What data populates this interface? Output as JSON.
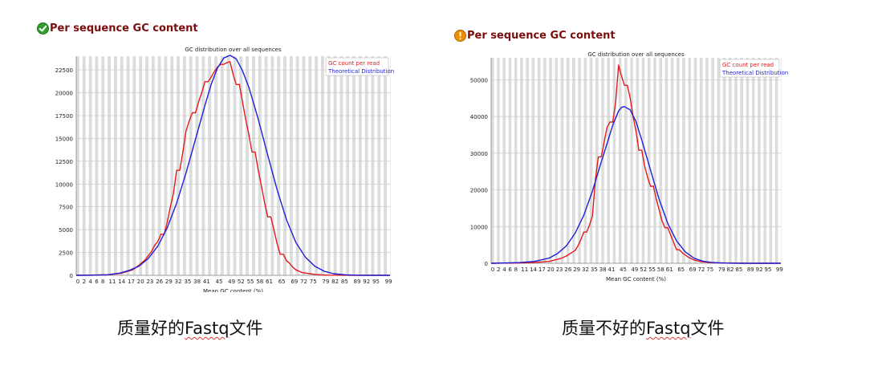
{
  "panels": [
    {
      "header_title": "Per sequence GC content",
      "status": "pass",
      "caption_prefix": "质量好的",
      "caption_word": "Fastq",
      "caption_suffix": "文件"
    },
    {
      "header_title": "Per sequence GC content",
      "status": "warn",
      "caption_prefix": "质量不好的",
      "caption_word": "Fastq",
      "caption_suffix": "文件"
    }
  ],
  "colors": {
    "header": "#7b0d0d",
    "gc_count": "#e41a1c",
    "theoretical": "#1f1fd6",
    "pass_icon": "#2e9e2e",
    "warn_icon": "#f08c00",
    "stripe": "#dcdcdc"
  },
  "icons": {
    "pass": "check-circle-icon",
    "warn": "warning-circle-icon"
  },
  "chart_data": [
    {
      "type": "line",
      "title": "GC distribution over all sequences",
      "xlabel": "Mean GC content (%)",
      "ylabel": "",
      "xlim": [
        0,
        100
      ],
      "ylim": [
        0,
        24000
      ],
      "grid": true,
      "legend_position": "top-right",
      "x_ticks": [
        "0",
        "2",
        "4",
        "6",
        "8",
        "11",
        "14",
        "17",
        "20",
        "23",
        "26",
        "29",
        "32",
        "35",
        "38",
        "41",
        "45",
        "49",
        "52",
        "55",
        "58",
        "61",
        "65",
        "69",
        "72",
        "75",
        "79",
        "82",
        "85",
        "89",
        "92",
        "95",
        "99"
      ],
      "y_ticks": [
        "0",
        "2500",
        "5000",
        "7500",
        "10000",
        "12500",
        "15000",
        "17500",
        "20000",
        "22500"
      ],
      "series": [
        {
          "name": "GC count per read",
          "x": [
            0,
            10,
            12,
            14,
            16,
            18,
            20,
            22,
            24,
            25,
            26,
            27,
            28,
            29,
            30,
            31,
            32,
            33,
            34,
            35,
            36,
            37,
            38,
            39,
            40,
            41,
            42,
            43,
            44,
            45,
            46,
            47,
            48,
            49,
            50,
            51,
            52,
            53,
            54,
            55,
            56,
            57,
            58,
            59,
            60,
            61,
            62,
            63,
            64,
            65,
            66,
            67,
            68,
            69,
            70,
            72,
            74,
            76,
            78,
            80,
            85,
            90,
            100
          ],
          "y": [
            0,
            50,
            120,
            200,
            400,
            600,
            1100,
            1700,
            2600,
            3300,
            3700,
            4500,
            4500,
            5800,
            7500,
            9000,
            11500,
            11500,
            13500,
            15800,
            16900,
            17800,
            17800,
            19000,
            20000,
            21200,
            21200,
            21700,
            22300,
            22800,
            23100,
            23100,
            23300,
            23400,
            22000,
            20900,
            20900,
            19000,
            17100,
            15400,
            13500,
            13500,
            11500,
            9800,
            8000,
            6400,
            6400,
            5000,
            3500,
            2300,
            2300,
            1600,
            1300,
            900,
            600,
            300,
            200,
            100,
            50,
            20,
            5,
            0,
            0
          ]
        },
        {
          "name": "Theoretical Distribution",
          "x": [
            0,
            5,
            10,
            14,
            17,
            20,
            23,
            26,
            29,
            32,
            35,
            38,
            41,
            43,
            45,
            47,
            49,
            51,
            53,
            55,
            58,
            61,
            64,
            67,
            70,
            73,
            76,
            79,
            82,
            86,
            90,
            95,
            100
          ],
          "y": [
            0,
            5,
            60,
            250,
            550,
            1000,
            1850,
            3200,
            5200,
            7900,
            11200,
            14900,
            18600,
            20900,
            22700,
            23800,
            24100,
            23700,
            22400,
            20600,
            17100,
            13200,
            9400,
            6100,
            3600,
            2000,
            1000,
            450,
            180,
            50,
            10,
            0,
            0
          ]
        }
      ]
    },
    {
      "type": "line",
      "title": "GC distribution over all sequences",
      "xlabel": "Mean GC content (%)",
      "ylabel": "",
      "xlim": [
        0,
        100
      ],
      "ylim": [
        0,
        56000
      ],
      "grid": true,
      "legend_position": "top-right",
      "x_ticks": [
        "0",
        "2",
        "4",
        "6",
        "8",
        "11",
        "14",
        "17",
        "20",
        "23",
        "26",
        "29",
        "32",
        "35",
        "38",
        "41",
        "45",
        "49",
        "52",
        "55",
        "58",
        "61",
        "65",
        "69",
        "72",
        "75",
        "79",
        "82",
        "85",
        "89",
        "92",
        "95",
        "99"
      ],
      "y_ticks": [
        "0",
        "10000",
        "20000",
        "30000",
        "40000",
        "50000"
      ],
      "series": [
        {
          "name": "GC count per read",
          "x": [
            0,
            10,
            15,
            20,
            22,
            24,
            26,
            28,
            29,
            30,
            31,
            32,
            33,
            34,
            35,
            36,
            37,
            38,
            39,
            40,
            41,
            42,
            43,
            44,
            45,
            46,
            47,
            48,
            49,
            50,
            51,
            52,
            53,
            54,
            55,
            56,
            57,
            58,
            59,
            60,
            61,
            62,
            63,
            64,
            65,
            66,
            68,
            70,
            72,
            75,
            80,
            90,
            100
          ],
          "y": [
            0,
            80,
            200,
            500,
            900,
            1300,
            2000,
            3000,
            3500,
            4800,
            6500,
            8500,
            8500,
            10500,
            13000,
            23000,
            29000,
            29000,
            33000,
            37000,
            38500,
            38500,
            44000,
            54000,
            51000,
            48500,
            48500,
            45000,
            40000,
            36000,
            30800,
            30800,
            26500,
            23500,
            21000,
            21000,
            17500,
            14500,
            11500,
            9700,
            9700,
            7600,
            5700,
            3700,
            3700,
            2800,
            1700,
            900,
            500,
            200,
            80,
            10,
            0
          ],
          "y_note": "approximate"
        },
        {
          "name": "Theoretical Distribution",
          "x": [
            0,
            10,
            15,
            20,
            23,
            26,
            29,
            32,
            35,
            38,
            40,
            42,
            44,
            45,
            46,
            48,
            50,
            52,
            55,
            58,
            61,
            64,
            67,
            70,
            73,
            76,
            80,
            85,
            90,
            100
          ],
          "y": [
            0,
            200,
            500,
            1400,
            2700,
            4800,
            8200,
            13100,
            19700,
            27600,
            32600,
            37700,
            41500,
            42500,
            42700,
            41800,
            38600,
            33600,
            25400,
            17400,
            10800,
            6100,
            3100,
            1400,
            600,
            230,
            60,
            10,
            0,
            0
          ]
        }
      ]
    }
  ]
}
